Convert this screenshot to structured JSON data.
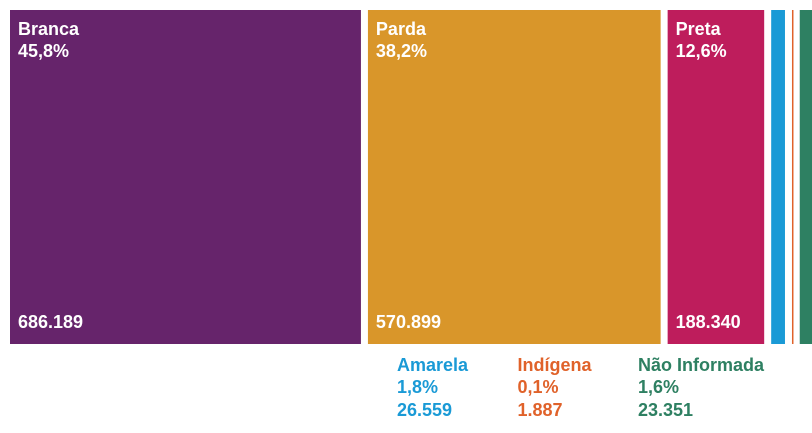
{
  "chart_data": {
    "type": "proportion",
    "categories": [
      "Branca",
      "Parda",
      "Preta",
      "Amarela",
      "Indígena",
      "Não Informada"
    ],
    "values": [
      45.8,
      38.2,
      12.6,
      1.8,
      0.1,
      1.6
    ],
    "value_labels": [
      "45,8%",
      "38,2%",
      "12,6%",
      "1,8%",
      "0,1%",
      "1,6%"
    ],
    "counts": [
      686189,
      570899,
      188340,
      26559,
      1887,
      23351
    ],
    "count_labels": [
      "686.189",
      "570.899",
      "188.340",
      "26.559",
      "1.887",
      "23.351"
    ],
    "colors": [
      "#66246b",
      "#d9962a",
      "#be1d5c",
      "#1a9ad6",
      "#e0622a",
      "#2e8062"
    ]
  }
}
